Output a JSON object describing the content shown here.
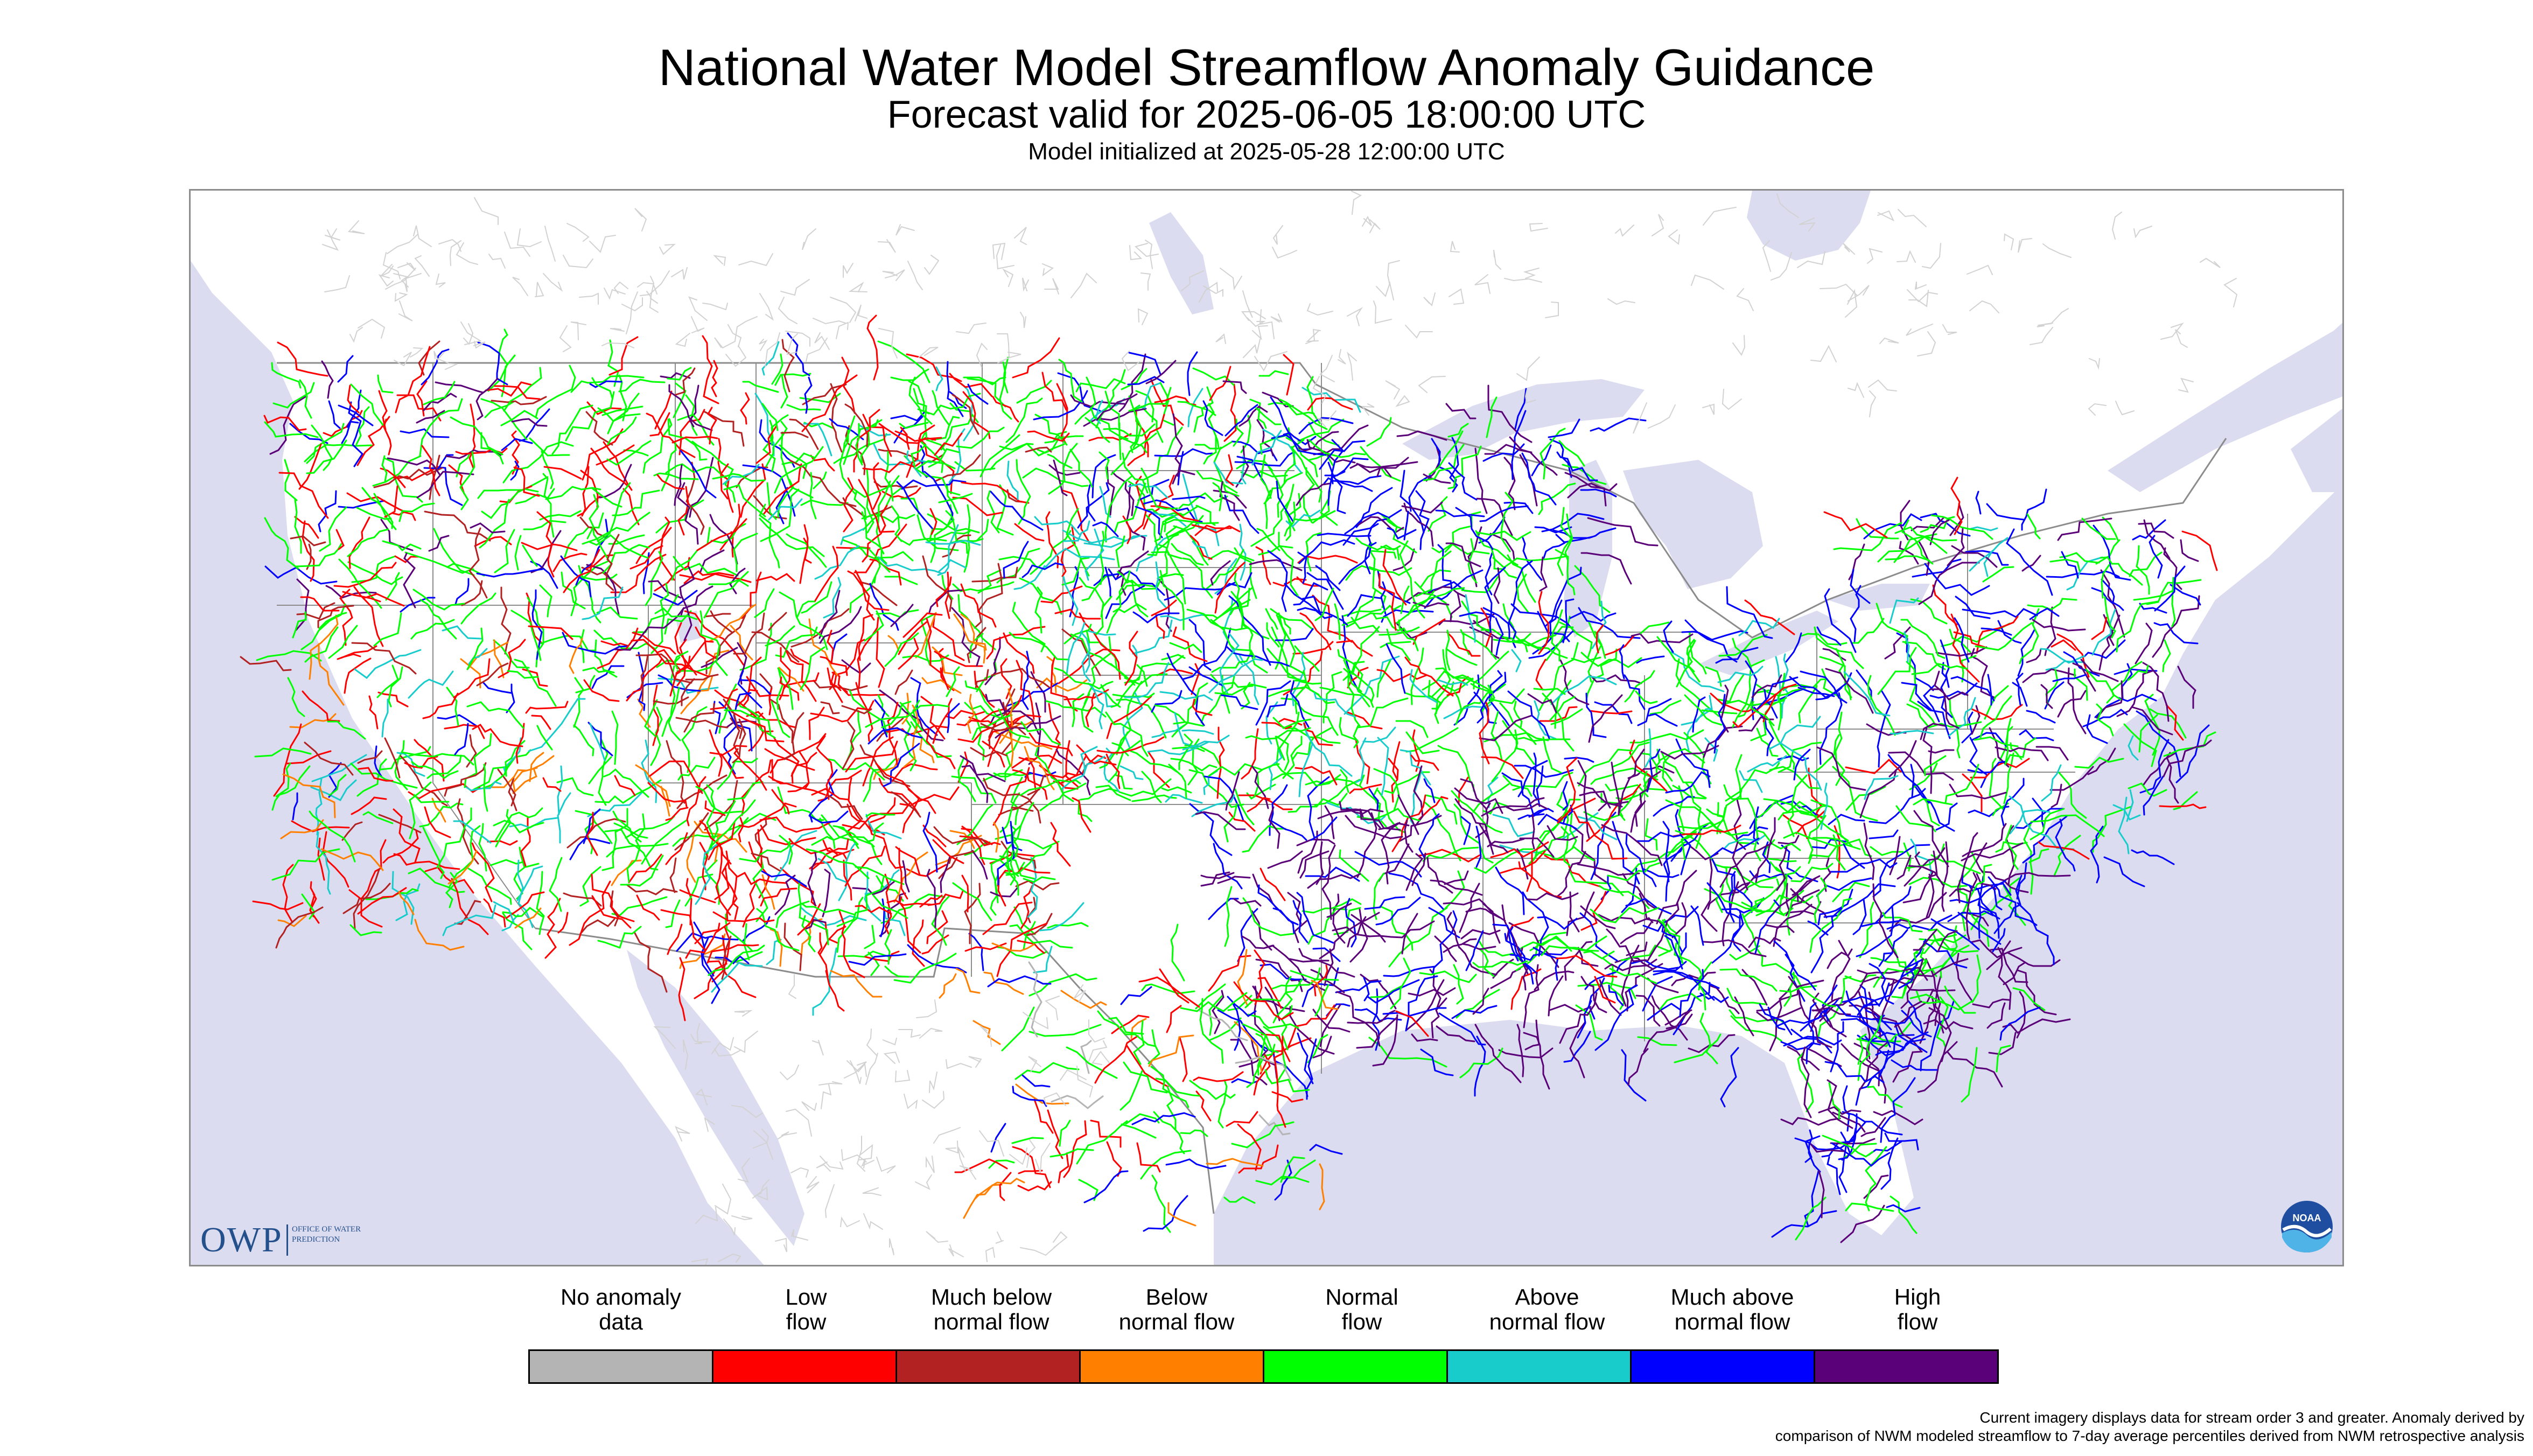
{
  "header": {
    "title": "National Water Model Streamflow Anomaly Guidance",
    "subtitle": "Forecast valid for 2025-06-05 18:00:00 UTC",
    "init_line": "Model initialized at 2025-05-28 12:00:00 UTC"
  },
  "map": {
    "land_color": "#ffffff",
    "water_color": "#dcdcf0",
    "border_color": "#8c8c8c"
  },
  "logos": {
    "owp": {
      "letters": "OWP",
      "words": "Office of Water Prediction",
      "color": "#24508c"
    },
    "noaa": {
      "text": "NOAA",
      "icon": "noaa-logo-icon"
    }
  },
  "legend": {
    "categories": [
      {
        "line1": "No anomaly",
        "line2": "data",
        "color": "#b4b4b4"
      },
      {
        "line1": "Low",
        "line2": "flow",
        "color": "#ff0000"
      },
      {
        "line1": "Much below",
        "line2": "normal flow",
        "color": "#b22222"
      },
      {
        "line1": "Below",
        "line2": "normal flow",
        "color": "#ff7f00"
      },
      {
        "line1": "Normal",
        "line2": "flow",
        "color": "#00ff00"
      },
      {
        "line1": "Above",
        "line2": "normal flow",
        "color": "#19cccc"
      },
      {
        "line1": "Much above",
        "line2": "normal flow",
        "color": "#0000ff"
      },
      {
        "line1": "High",
        "line2": "flow",
        "color": "#5a0078"
      }
    ]
  },
  "footnote": {
    "line1": "Current imagery displays data for stream order 3 and greater. Anomaly derived by",
    "line2": "comparison of NWM modeled streamflow to 7-day average percentiles derived from NWM retrospective analysis"
  }
}
